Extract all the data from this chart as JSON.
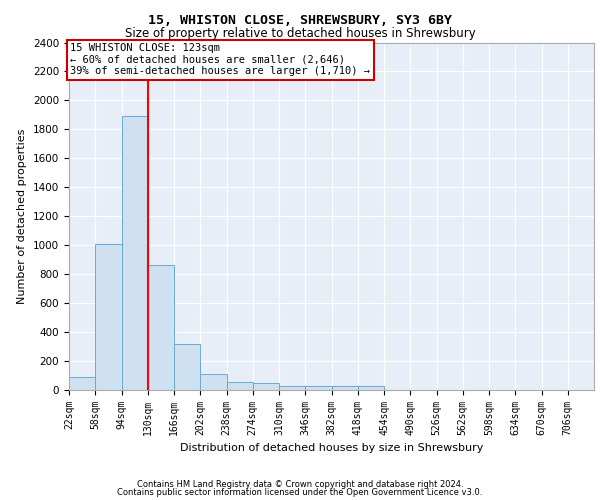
{
  "title1": "15, WHISTON CLOSE, SHREWSBURY, SY3 6BY",
  "title2": "Size of property relative to detached houses in Shrewsbury",
  "xlabel": "Distribution of detached houses by size in Shrewsbury",
  "ylabel": "Number of detached properties",
  "bins": [
    22,
    58,
    94,
    130,
    166,
    202,
    238,
    274,
    310,
    346,
    382,
    418,
    454,
    490,
    526,
    562,
    598,
    634,
    670,
    706,
    742
  ],
  "counts": [
    90,
    1010,
    1890,
    860,
    320,
    110,
    55,
    50,
    30,
    30,
    30,
    25,
    0,
    0,
    0,
    0,
    0,
    0,
    0,
    0
  ],
  "bar_color": "#cfe0f0",
  "bar_edge_color": "#6aaad4",
  "red_line_x": 130,
  "annotation_line1": "15 WHISTON CLOSE: 123sqm",
  "annotation_line2": "← 60% of detached houses are smaller (2,646)",
  "annotation_line3": "39% of semi-detached houses are larger (1,710) →",
  "box_facecolor": "#ffffff",
  "box_edgecolor": "#cc0000",
  "ylim": [
    0,
    2400
  ],
  "yticks": [
    0,
    200,
    400,
    600,
    800,
    1000,
    1200,
    1400,
    1600,
    1800,
    2000,
    2200,
    2400
  ],
  "background_color": "#e8eef8",
  "grid_color": "#ffffff",
  "footer1": "Contains HM Land Registry data © Crown copyright and database right 2024.",
  "footer2": "Contains public sector information licensed under the Open Government Licence v3.0."
}
